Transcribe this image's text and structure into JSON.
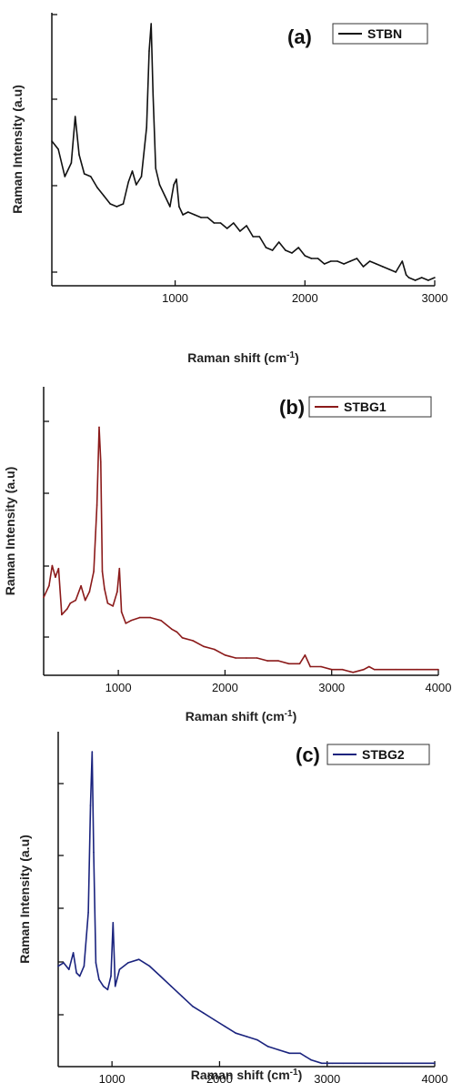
{
  "chart_data": [
    {
      "type": "line",
      "panel_label": "(a)",
      "xlabel_main": "Raman shift (cm",
      "xlabel_sup": "-1",
      "xlabel_end": ")",
      "ylabel": "Raman Intensity (a.u)",
      "xlim": [
        50,
        3000
      ],
      "ylim": [
        0,
        100
      ],
      "x_ticks": [
        1000,
        2000,
        3000
      ],
      "legend_position": "top-right",
      "series": [
        {
          "name": "STBN",
          "color": "#111111",
          "x": [
            50,
            100,
            150,
            200,
            230,
            260,
            300,
            350,
            400,
            450,
            500,
            550,
            600,
            640,
            670,
            700,
            740,
            780,
            800,
            815,
            830,
            850,
            880,
            920,
            960,
            990,
            1010,
            1030,
            1060,
            1100,
            1150,
            1200,
            1250,
            1300,
            1350,
            1400,
            1450,
            1500,
            1550,
            1600,
            1650,
            1700,
            1750,
            1800,
            1850,
            1900,
            1950,
            2000,
            2050,
            2100,
            2150,
            2200,
            2250,
            2300,
            2350,
            2400,
            2450,
            2500,
            2550,
            2600,
            2650,
            2700,
            2750,
            2780,
            2800,
            2850,
            2900,
            2950,
            3000
          ],
          "y": [
            53,
            50,
            40,
            45,
            62,
            48,
            41,
            40,
            36,
            33,
            30,
            29,
            30,
            38,
            42,
            37,
            40,
            58,
            86,
            96,
            70,
            43,
            37,
            33,
            29,
            37,
            39,
            29,
            26,
            27,
            26,
            25,
            25,
            23,
            23,
            21,
            23,
            20,
            22,
            18,
            18,
            14,
            13,
            16,
            13,
            12,
            14,
            11,
            10,
            10,
            8,
            9,
            9,
            8,
            9,
            10,
            7,
            9,
            8,
            7,
            6,
            5,
            9,
            4,
            3,
            2,
            3,
            2,
            3
          ]
        }
      ]
    },
    {
      "type": "line",
      "panel_label": "(b)",
      "xlabel_main": "Raman shift (cm",
      "xlabel_sup": "-1",
      "xlabel_end": ")",
      "ylabel": "Raman Intensity (a.u)",
      "xlim": [
        300,
        4000
      ],
      "ylim": [
        0,
        100
      ],
      "x_ticks": [
        1000,
        2000,
        3000,
        4000
      ],
      "legend_position": "top-right",
      "series": [
        {
          "name": "STBG1",
          "color": "#8b1a1a",
          "x": [
            300,
            350,
            380,
            410,
            440,
            470,
            520,
            550,
            600,
            650,
            690,
            730,
            770,
            800,
            820,
            835,
            850,
            870,
            900,
            950,
            990,
            1010,
            1030,
            1070,
            1120,
            1200,
            1300,
            1400,
            1500,
            1550,
            1600,
            1700,
            1800,
            1900,
            2000,
            2100,
            2200,
            2300,
            2400,
            2500,
            2600,
            2700,
            2750,
            2800,
            2900,
            3000,
            3100,
            3200,
            3300,
            3350,
            3400,
            3600,
            3800,
            4000
          ],
          "y": [
            27,
            31,
            38,
            34,
            37,
            21,
            23,
            25,
            26,
            31,
            26,
            29,
            36,
            59,
            86,
            74,
            36,
            30,
            25,
            24,
            29,
            37,
            22,
            18,
            19,
            20,
            20,
            19,
            16,
            15,
            13,
            12,
            10,
            9,
            7,
            6,
            6,
            6,
            5,
            5,
            4,
            4,
            7,
            3,
            3,
            2,
            2,
            1,
            2,
            3,
            2,
            2,
            2,
            2
          ]
        }
      ]
    },
    {
      "type": "line",
      "panel_label": "(c)",
      "xlabel_main": "Raman shift (cm",
      "xlabel_sup": "-1",
      "xlabel_end": ")",
      "ylabel": "Raman Intensity (a.u)",
      "xlim": [
        500,
        4000
      ],
      "ylim": [
        0,
        100
      ],
      "x_ticks": [
        1000,
        2000,
        3000,
        4000
      ],
      "legend_position": "top-right",
      "series": [
        {
          "name": "STBG2",
          "color": "#1a237e",
          "x": [
            500,
            550,
            600,
            640,
            670,
            700,
            740,
            780,
            800,
            815,
            830,
            850,
            880,
            920,
            960,
            990,
            1010,
            1030,
            1070,
            1150,
            1250,
            1350,
            1450,
            1550,
            1650,
            1750,
            1850,
            1950,
            2050,
            2150,
            2250,
            2350,
            2450,
            2550,
            2650,
            2750,
            2800,
            2850,
            2950,
            3050,
            3150,
            3250,
            3350,
            3500,
            3700,
            4000
          ],
          "y": [
            30,
            31,
            29,
            34,
            28,
            27,
            30,
            46,
            78,
            94,
            64,
            31,
            26,
            24,
            23,
            27,
            43,
            24,
            29,
            31,
            32,
            30,
            27,
            24,
            21,
            18,
            16,
            14,
            12,
            10,
            9,
            8,
            6,
            5,
            4,
            4,
            3,
            2,
            1,
            1,
            1,
            1,
            1,
            1,
            1,
            1
          ]
        }
      ]
    }
  ]
}
